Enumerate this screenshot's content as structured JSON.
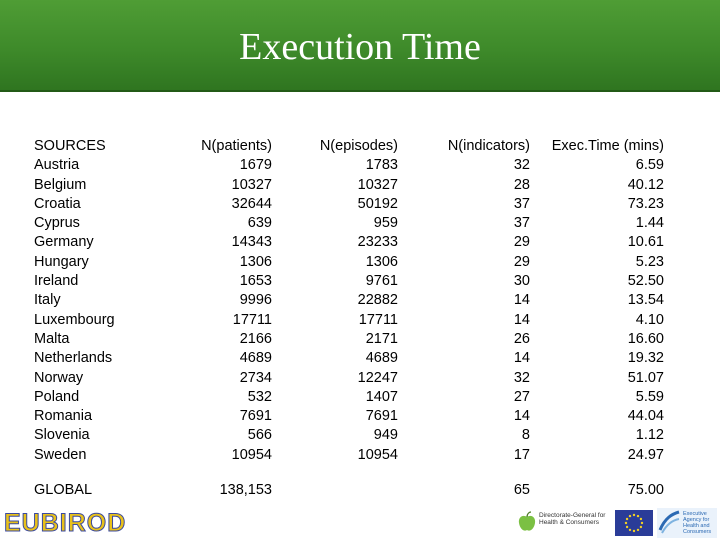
{
  "title": "Execution Time",
  "table": {
    "headers": [
      "SOURCES",
      "N(patients)",
      "N(episodes)",
      "N(indicators)",
      "Exec.Time (mins)"
    ],
    "rows": [
      [
        "Austria",
        "1679",
        "1783",
        "32",
        "6.59"
      ],
      [
        "Belgium",
        "10327",
        "10327",
        "28",
        "40.12"
      ],
      [
        "Croatia",
        "32644",
        "50192",
        "37",
        "73.23"
      ],
      [
        "Cyprus",
        "639",
        "959",
        "37",
        "1.44"
      ],
      [
        "Germany",
        "14343",
        "23233",
        "29",
        "10.61"
      ],
      [
        "Hungary",
        "1306",
        "1306",
        "29",
        "5.23"
      ],
      [
        "Ireland",
        "1653",
        "9761",
        "30",
        "52.50"
      ],
      [
        "Italy",
        "9996",
        "22882",
        "14",
        "13.54"
      ],
      [
        "Luxembourg",
        "17711",
        "17711",
        "14",
        "4.10"
      ],
      [
        "Malta",
        "2166",
        "2171",
        "26",
        "16.60"
      ],
      [
        "Netherlands",
        "4689",
        "4689",
        "14",
        "19.32"
      ],
      [
        "Norway",
        "2734",
        "12247",
        "32",
        "51.07"
      ],
      [
        "Poland",
        "532",
        "1407",
        "27",
        "5.59"
      ],
      [
        "Romania",
        "7691",
        "7691",
        "14",
        "44.04"
      ],
      [
        "Slovenia",
        "566",
        "949",
        "8",
        "1.12"
      ],
      [
        "Sweden",
        "10954",
        "10954",
        "17",
        "24.97"
      ]
    ],
    "global": {
      "label": "GLOBAL",
      "patients": "138,153",
      "episodes": "",
      "indicators": "65",
      "exec_time": "75.00"
    }
  },
  "footer": {
    "logo_text": "EUBIROD",
    "dg_text": [
      "Directorate-General for",
      "Health & Consumers"
    ],
    "agency_text": [
      "Executive",
      "Agency for",
      "Health and",
      "Consumers"
    ]
  },
  "colors": {
    "banner": "#3e8a2a",
    "title": "#ffffff",
    "logo_fill": "#e8c11a",
    "logo_outline": "#3b4aa0",
    "eu_blue": "#2a3c98"
  }
}
